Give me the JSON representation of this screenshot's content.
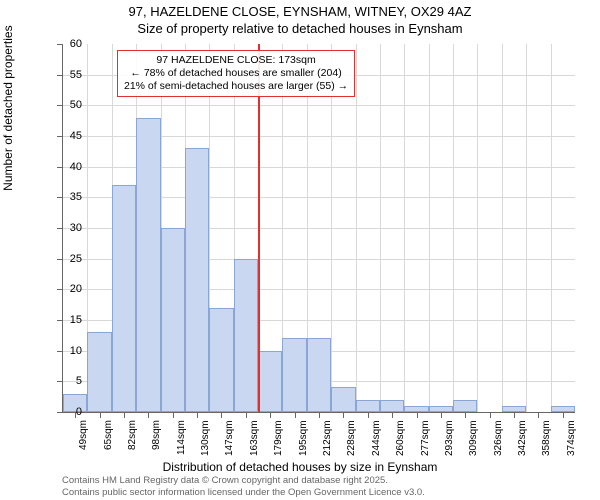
{
  "title": {
    "line1": "97, HAZELDENE CLOSE, EYNSHAM, WITNEY, OX29 4AZ",
    "line2": "Size of property relative to detached houses in Eynsham"
  },
  "chart": {
    "type": "histogram",
    "ylabel": "Number of detached properties",
    "xlabel": "Distribution of detached houses by size in Eynsham",
    "ylim": [
      0,
      60
    ],
    "ytick_step": 5,
    "x_categories": [
      "49sqm",
      "65sqm",
      "82sqm",
      "98sqm",
      "114sqm",
      "130sqm",
      "147sqm",
      "163sqm",
      "179sqm",
      "195sqm",
      "212sqm",
      "228sqm",
      "244sqm",
      "260sqm",
      "277sqm",
      "293sqm",
      "309sqm",
      "326sqm",
      "342sqm",
      "358sqm",
      "374sqm"
    ],
    "values": [
      3,
      13,
      37,
      48,
      30,
      43,
      17,
      25,
      10,
      12,
      12,
      4,
      2,
      2,
      1,
      1,
      2,
      0,
      1,
      0,
      1
    ],
    "bar_color": "#c9d8f0",
    "bar_border_color": "#8aa6d6",
    "grid_color": "#d8d8d8",
    "background_color": "#ffffff",
    "reference_line": {
      "x_index_between": 7.5,
      "color": "#e03030",
      "width": 2
    },
    "annotation": {
      "line1": "97 HAZELDENE CLOSE: 173sqm",
      "line2": "← 78% of detached houses are smaller (204)",
      "line3": "21% of semi-detached houses are larger (55) →",
      "border_color": "#e03030"
    }
  },
  "footer": {
    "line1": "Contains HM Land Registry data © Crown copyright and database right 2025.",
    "line2": "Contains public sector information licensed under the Open Government Licence v3.0."
  }
}
